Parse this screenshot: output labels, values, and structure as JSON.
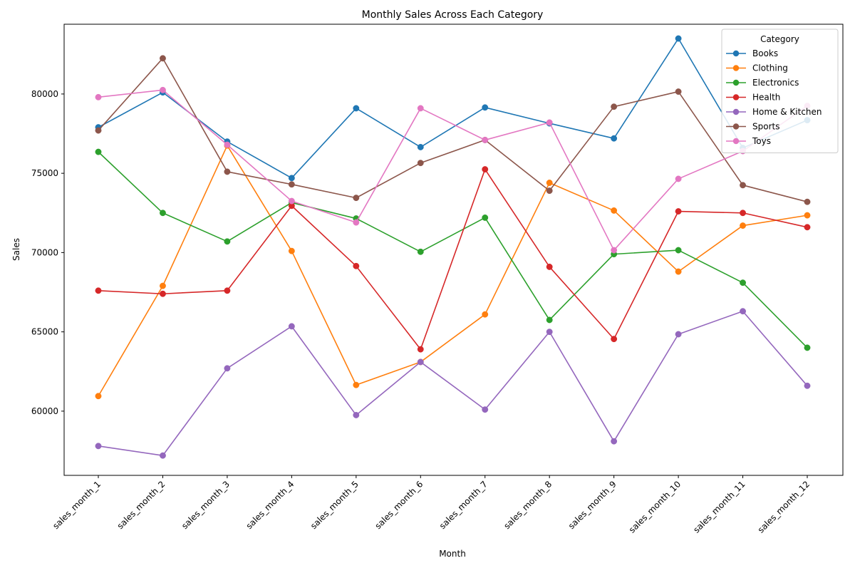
{
  "chart_data": {
    "type": "line",
    "title": "Monthly Sales Across Each Category",
    "xlabel": "Month",
    "ylabel": "Sales",
    "categories": [
      "sales_month_1",
      "sales_month_2",
      "sales_month_3",
      "sales_month_4",
      "sales_month_5",
      "sales_month_6",
      "sales_month_7",
      "sales_month_8",
      "sales_month_9",
      "sales_month_10",
      "sales_month_11",
      "sales_month_12"
    ],
    "ylim": [
      55950,
      84400
    ],
    "yticks": [
      60000,
      65000,
      70000,
      75000,
      80000
    ],
    "grid": false,
    "legend": {
      "title": "Category",
      "placement": "top-right"
    },
    "series": [
      {
        "name": "Books",
        "color": "#1f77b4",
        "values": [
          77900,
          80100,
          77000,
          74700,
          79100,
          76650,
          79150,
          78150,
          77200,
          83500,
          76600,
          78350
        ]
      },
      {
        "name": "Clothing",
        "color": "#ff7f0e",
        "values": [
          60950,
          67900,
          76750,
          70100,
          61650,
          63100,
          66100,
          74400,
          72650,
          68800,
          71700,
          72350
        ]
      },
      {
        "name": "Electronics",
        "color": "#2ca02c",
        "values": [
          76350,
          72500,
          70700,
          73150,
          72150,
          70050,
          72200,
          65750,
          69900,
          70150,
          68100,
          64000
        ]
      },
      {
        "name": "Health",
        "color": "#d62728",
        "values": [
          67600,
          67400,
          67600,
          72950,
          69150,
          63900,
          75250,
          69100,
          64550,
          72600,
          72500,
          71600
        ]
      },
      {
        "name": "Home & Kitchen",
        "color": "#9467bd",
        "values": [
          57800,
          57200,
          62700,
          65350,
          59750,
          63100,
          60100,
          65000,
          58100,
          64850,
          66300,
          61600
        ]
      },
      {
        "name": "Sports",
        "color": "#8c564b",
        "values": [
          77700,
          82250,
          75100,
          74300,
          73450,
          75650,
          77100,
          73900,
          79200,
          80150,
          74250,
          73200
        ]
      },
      {
        "name": "Toys",
        "color": "#e377c2",
        "values": [
          79800,
          80250,
          76800,
          73250,
          71900,
          79100,
          77100,
          78200,
          70150,
          74650,
          76400,
          79250
        ]
      }
    ]
  }
}
